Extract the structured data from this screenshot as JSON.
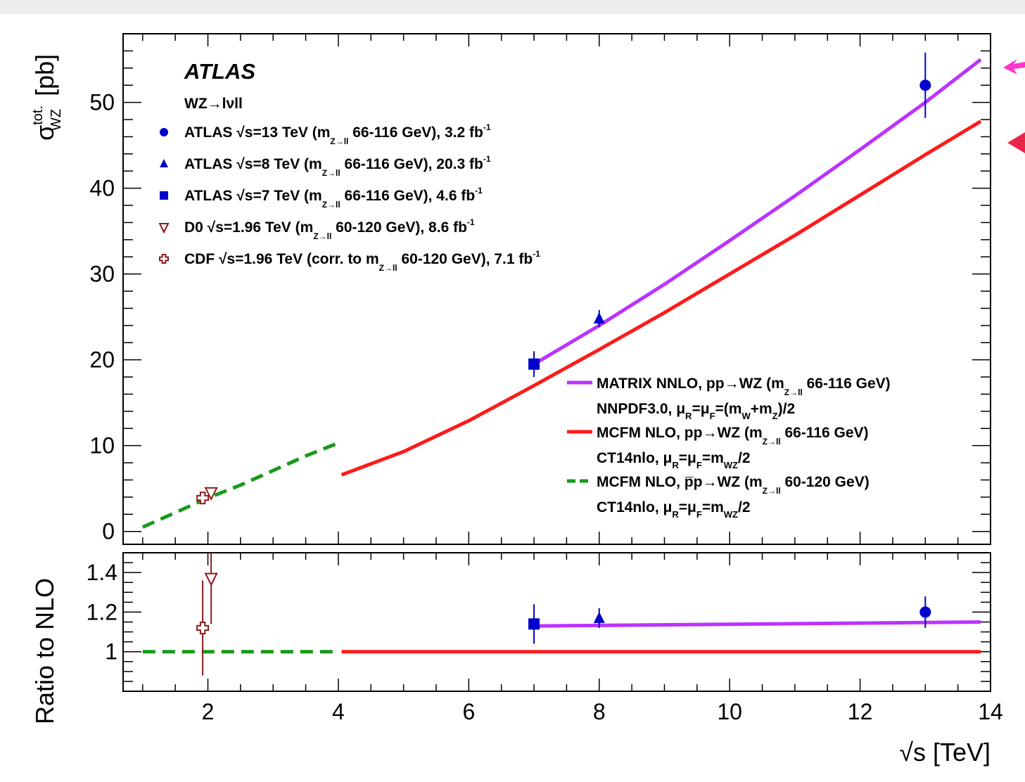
{
  "chart_data": [
    {
      "panel": "main",
      "type": "line",
      "experiment_label": "ATLAS",
      "process_label": "WZ→lνll",
      "ylabel": "σᵂᴢ tot. [pb]",
      "ylabel_parts": {
        "sigma": "σ",
        "sup": "tot.",
        "sub": "WZ",
        "unit": "[pb]"
      },
      "xlim": [
        0.7,
        14
      ],
      "ylim": [
        -1.5,
        58
      ],
      "ytick_labels": [
        "0",
        "10",
        "20",
        "30",
        "40",
        "50"
      ],
      "ytick_values": [
        0,
        10,
        20,
        30,
        40,
        50
      ],
      "data_series": [
        {
          "name": "ATLAS √s=13 TeV (m_Z→ll 66-116 GeV), 3.2 fb-1",
          "marker": "circle",
          "color": "#0000cc",
          "points": [
            {
              "x": 13,
              "y": 52.0,
              "err_lo": 3.8,
              "err_hi": 3.8
            }
          ]
        },
        {
          "name": "ATLAS √s=8 TeV (m_Z→ll 66-116 GeV), 20.3 fb-1",
          "marker": "triangle",
          "color": "#0000cc",
          "points": [
            {
              "x": 8,
              "y": 24.8,
              "err_lo": 1.0,
              "err_hi": 1.0
            }
          ]
        },
        {
          "name": "ATLAS √s=7 TeV (m_Z→ll 66-116 GeV), 4.6 fb-1",
          "marker": "square",
          "color": "#0000cc",
          "points": [
            {
              "x": 7,
              "y": 19.5,
              "err_lo": 1.5,
              "err_hi": 1.5
            }
          ]
        },
        {
          "name": "D0 √s=1.96 TeV (m_Z→ll 60-120 GeV), 8.6 fb-1",
          "marker": "open-triangle-down",
          "color": "#8b1a1a",
          "points": [
            {
              "x": 2.05,
              "y": 4.5,
              "err_lo": 0.6,
              "err_hi": 0.6
            }
          ]
        },
        {
          "name": "CDF √s=1.96 TeV (corr. to m_Z→ll 60-120 GeV), 7.1 fb-1",
          "marker": "open-cross",
          "color": "#8b1a1a",
          "points": [
            {
              "x": 1.92,
              "y": 3.9,
              "err_lo": 0.6,
              "err_hi": 0.6
            }
          ]
        }
      ],
      "theory_series": [
        {
          "name": "MATRIX NNLO, pp→WZ (m_Z→ll 66-116 GeV) NNPDF3.0, μR=μF=(mW+mZ)/2",
          "color": "#bb33ff",
          "style": "solid",
          "x": [
            7,
            8,
            9,
            10,
            11,
            12,
            13,
            13.85
          ],
          "y": [
            19.5,
            24.0,
            28.8,
            33.9,
            39.1,
            44.5,
            50.0,
            55.0
          ]
        },
        {
          "name": "MCFM NLO, pp→WZ (m_Z→ll 66-116 GeV) CT14nlo, μR=μF=mWZ/2",
          "color": "#ff1a1a",
          "style": "solid",
          "x": [
            4.05,
            5,
            6,
            7,
            8,
            9,
            10,
            11,
            12,
            13,
            13.85
          ],
          "y": [
            6.6,
            9.3,
            12.9,
            17.0,
            21.2,
            25.5,
            30.0,
            34.5,
            39.2,
            43.9,
            47.8
          ]
        },
        {
          "name": "MCFM NLO, p̅p→WZ (m_Z→ll 60-120 GeV) CT14nlo, μR=μF=mWZ/2",
          "color": "#1a9a1a",
          "style": "dashed",
          "x": [
            1.0,
            1.5,
            2.0,
            2.5,
            3.0,
            3.5,
            4.0
          ],
          "y": [
            0.5,
            2.2,
            3.9,
            5.4,
            7.1,
            8.8,
            10.3
          ]
        }
      ]
    },
    {
      "panel": "ratio",
      "type": "line",
      "ylabel": "Ratio to NLO",
      "xlabel": "√s [TeV]",
      "xlim": [
        0.7,
        14
      ],
      "ylim": [
        0.8,
        1.5
      ],
      "ytick_labels": [
        "1",
        "1.2",
        "1.4"
      ],
      "ytick_values": [
        1.0,
        1.2,
        1.4
      ],
      "xtick_labels": [
        "2",
        "4",
        "6",
        "8",
        "10",
        "12",
        "14"
      ],
      "xtick_values": [
        2,
        4,
        6,
        8,
        10,
        12,
        14
      ],
      "data_points": [
        {
          "marker": "circle",
          "color": "#0000cc",
          "x": 13,
          "y": 1.2,
          "err_lo": 0.08,
          "err_hi": 0.08
        },
        {
          "marker": "triangle",
          "color": "#0000cc",
          "x": 8,
          "y": 1.17,
          "err_lo": 0.05,
          "err_hi": 0.05
        },
        {
          "marker": "square",
          "color": "#0000cc",
          "x": 7,
          "y": 1.14,
          "err_lo": 0.1,
          "err_hi": 0.1
        },
        {
          "marker": "open-triangle-down",
          "color": "#8b1a1a",
          "x": 2.05,
          "y": 1.37,
          "err_lo": 0.23,
          "err_hi": 0.2
        },
        {
          "marker": "open-cross",
          "color": "#8b1a1a",
          "x": 1.92,
          "y": 1.12,
          "err_lo": 0.24,
          "err_hi": 0.24
        }
      ],
      "lines": [
        {
          "color": "#bb33ff",
          "style": "solid",
          "x": [
            7,
            13.85
          ],
          "y": [
            1.13,
            1.15
          ]
        },
        {
          "color": "#ff1a1a",
          "style": "solid",
          "x": [
            4.05,
            13.85
          ],
          "y": [
            1.0,
            1.0
          ]
        },
        {
          "color": "#1a9a1a",
          "style": "dashed",
          "x": [
            1.0,
            4.0
          ],
          "y": [
            1.0,
            1.0
          ]
        }
      ]
    }
  ],
  "legend_top": {
    "atlas": "ATLAS",
    "process_pre": "WZ→",
    "process_post": "lνll",
    "rows": [
      {
        "marker": "circle",
        "text_a": "ATLAS  √s=13 TeV (m",
        "sub": "Z→ll",
        "text_b": " 66-116 GeV), 3.2 fb",
        "sup": "-1"
      },
      {
        "marker": "triangle",
        "text_a": "ATLAS  √s=8 TeV  (m",
        "sub": "Z→ll",
        "text_b": " 66-116 GeV), 20.3 fb",
        "sup": "-1"
      },
      {
        "marker": "square",
        "text_a": "ATLAS  √s=7 TeV  (m",
        "sub": "Z→ll",
        "text_b": " 66-116 GeV), 4.6 fb",
        "sup": "-1"
      },
      {
        "marker": "open-triangle-down",
        "text_a": "D0     √s=1.96 TeV (m",
        "sub": "Z→ll",
        "text_b": " 60-120 GeV), 8.6 fb",
        "sup": "-1"
      },
      {
        "marker": "open-cross",
        "text_a": "CDF  √s=1.96 TeV (corr. to m",
        "sub": "Z→ll",
        "text_b": " 60-120 GeV), 7.1 fb",
        "sup": "-1"
      }
    ]
  },
  "legend_bottom": {
    "rows": [
      {
        "color": "#bb33ff",
        "style": "solid",
        "line1_a": "MATRIX NNLO, pp→WZ (m",
        "line1_sub": "Z→ll",
        "line1_b": " 66-116 GeV)",
        "line2": "NNPDF3.0, μ",
        "line2_parts": [
          "R",
          "=μ",
          "F",
          "=(m",
          "W",
          "+m",
          "Z",
          ")/2"
        ]
      },
      {
        "color": "#ff1a1a",
        "style": "solid",
        "line1_a": "MCFM NLO, pp→WZ (m",
        "line1_sub": "Z→ll",
        "line1_b": " 66-116 GeV)",
        "line2": "CT14nlo, μ",
        "line2_parts": [
          "R",
          "=μ",
          "F",
          "=m",
          "WZ",
          "/2"
        ]
      },
      {
        "color": "#1a9a1a",
        "style": "dashed",
        "line1_a": "MCFM NLO, p̅p→WZ (m",
        "line1_sub": "Z→ll",
        "line1_b": " 60-120 GeV)",
        "line2": "CT14nlo, μ",
        "line2_parts": [
          "R",
          "=μ",
          "F",
          "=m",
          "WZ",
          "/2"
        ]
      }
    ]
  },
  "colors": {
    "atlas_blue": "#0000cc",
    "tevatron_brown": "#8b1a1a",
    "matrix": "#bb33ff",
    "mcfm": "#ff1a1a",
    "mcfm_tev": "#1a9a1a",
    "background": "#ececec"
  }
}
